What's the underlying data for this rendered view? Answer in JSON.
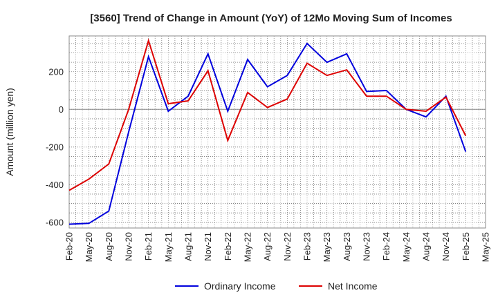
{
  "chart_data": {
    "type": "line",
    "title": "[3560]  Trend of Change in Amount (YoY) of 12Mo Moving Sum of Incomes",
    "ylabel": "Amount (million yen)",
    "xlabel": "",
    "ylim": [
      -630,
      390
    ],
    "yticks": [
      -600,
      -400,
      -200,
      0,
      200
    ],
    "grid": true,
    "legend_position": "bottom",
    "x": [
      "Feb-20",
      "Mar-20",
      "Apr-20",
      "May-20",
      "Jun-20",
      "Jul-20",
      "Aug-20",
      "Sep-20",
      "Oct-20",
      "Nov-20",
      "Dec-20",
      "Jan-21",
      "Feb-21",
      "Mar-21",
      "Apr-21",
      "May-21",
      "Jun-21",
      "Jul-21",
      "Aug-21",
      "Sep-21",
      "Oct-21",
      "Nov-21",
      "Dec-21",
      "Jan-22",
      "Feb-22",
      "Mar-22",
      "Apr-22",
      "May-22",
      "Jun-22",
      "Jul-22",
      "Aug-22",
      "Sep-22",
      "Oct-22",
      "Nov-22",
      "Dec-22",
      "Jan-23",
      "Feb-23",
      "Mar-23",
      "Apr-23",
      "May-23",
      "Jun-23",
      "Jul-23",
      "Aug-23",
      "Sep-23",
      "Oct-23",
      "Nov-23",
      "Dec-23",
      "Jan-24",
      "Feb-24",
      "Mar-24",
      "Apr-24",
      "May-24",
      "Jun-24",
      "Jul-24",
      "Aug-24",
      "Sep-24",
      "Oct-24",
      "Nov-24",
      "Dec-24",
      "Jan-25",
      "Feb-25",
      "Mar-25",
      "Apr-25",
      "May-25"
    ],
    "xtick_labels": [
      "Feb-20",
      "May-20",
      "Aug-20",
      "Nov-20",
      "Feb-21",
      "May-21",
      "Aug-21",
      "Nov-21",
      "Feb-22",
      "May-22",
      "Aug-22",
      "Nov-22",
      "Feb-23",
      "May-23",
      "Aug-23",
      "Nov-23",
      "Feb-24",
      "May-24",
      "Aug-24",
      "Nov-24",
      "Feb-25",
      "May-25"
    ],
    "series": [
      {
        "name": "Ordinary Income",
        "color": "#0000dd",
        "x": [
          "Feb-20",
          "May-20",
          "Aug-20",
          "Nov-20",
          "Feb-21",
          "May-21",
          "Aug-21",
          "Nov-21",
          "Feb-22",
          "May-22",
          "Aug-22",
          "Nov-22",
          "Feb-23",
          "May-23",
          "Aug-23",
          "Nov-23",
          "Feb-24",
          "May-24",
          "Aug-24",
          "Nov-24",
          "Feb-25"
        ],
        "values": [
          -610,
          -605,
          -540,
          -120,
          280,
          -10,
          70,
          295,
          -10,
          265,
          120,
          180,
          350,
          250,
          295,
          95,
          100,
          0,
          -40,
          70,
          -225
        ]
      },
      {
        "name": "Net Income",
        "color": "#dd0000",
        "x": [
          "Feb-20",
          "May-20",
          "Aug-20",
          "Nov-20",
          "Feb-21",
          "May-21",
          "Aug-21",
          "Nov-21",
          "Feb-22",
          "May-22",
          "Aug-22",
          "Nov-22",
          "Feb-23",
          "May-23",
          "Aug-23",
          "Nov-23",
          "Feb-24",
          "May-24",
          "Aug-24",
          "Nov-24",
          "Feb-25"
        ],
        "values": [
          -430,
          -370,
          -290,
          0,
          365,
          30,
          45,
          205,
          -165,
          90,
          10,
          55,
          245,
          180,
          210,
          70,
          70,
          0,
          -10,
          65,
          -140
        ]
      }
    ]
  }
}
